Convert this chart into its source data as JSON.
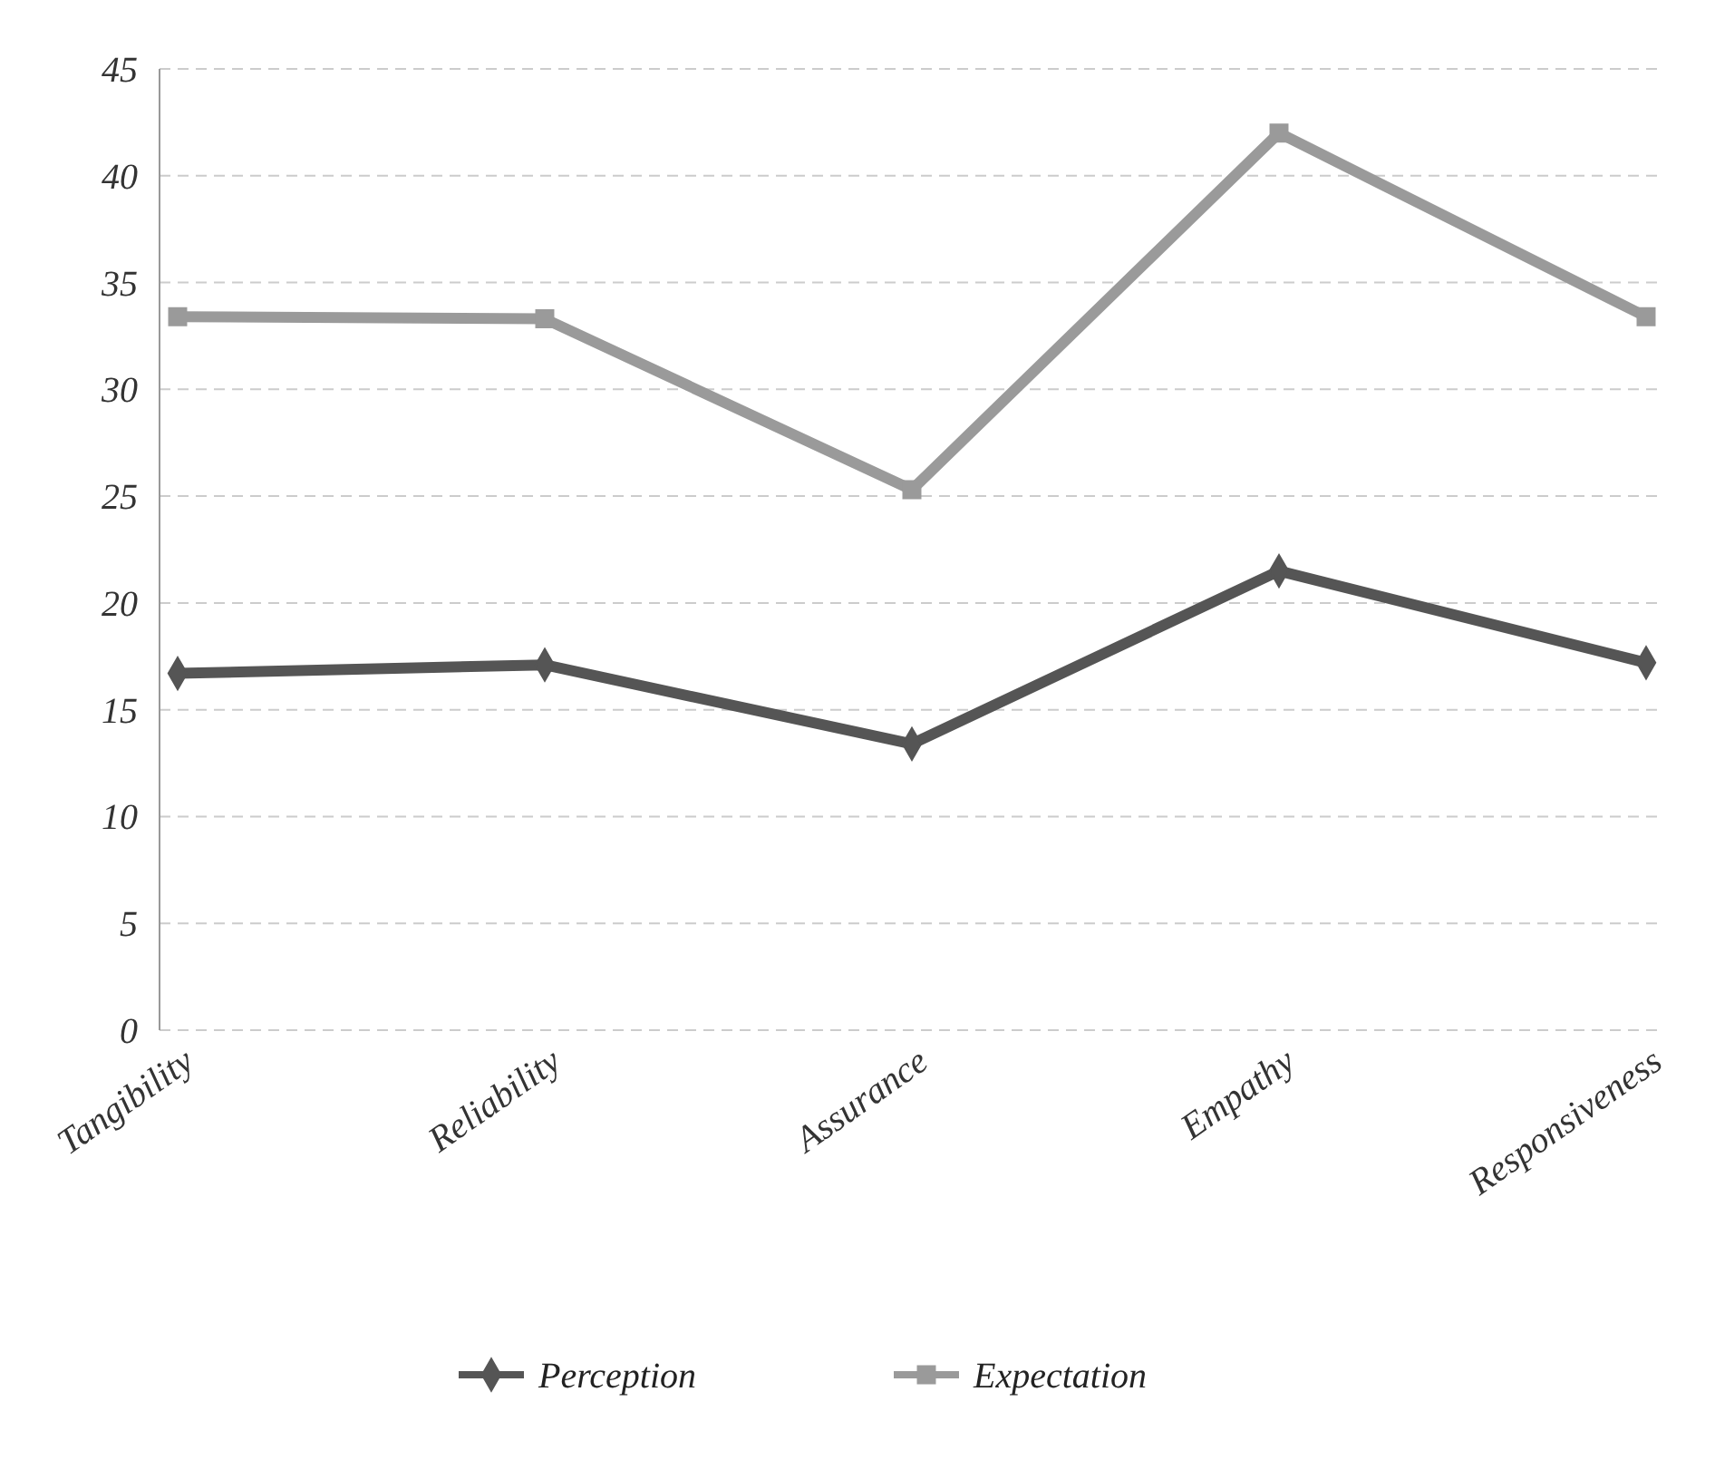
{
  "chart_data": {
    "type": "line",
    "categories": [
      "Tangibility",
      "Reliability",
      "Assurance",
      "Empathy",
      "Responsiveness"
    ],
    "series": [
      {
        "name": "Perception",
        "color": "#555555",
        "values": [
          16.7,
          17.1,
          13.4,
          21.5,
          17.2
        ],
        "marker": "diamond"
      },
      {
        "name": "Expectation",
        "color": "#9a9a9a",
        "values": [
          33.4,
          33.3,
          25.3,
          42,
          33.4
        ],
        "marker": "square"
      }
    ],
    "ylim": [
      0,
      45
    ],
    "yticks": [
      0,
      5,
      10,
      15,
      20,
      25,
      30,
      35,
      40,
      45
    ],
    "grid": "y",
    "legend": "bottom",
    "line_style": "solid"
  }
}
